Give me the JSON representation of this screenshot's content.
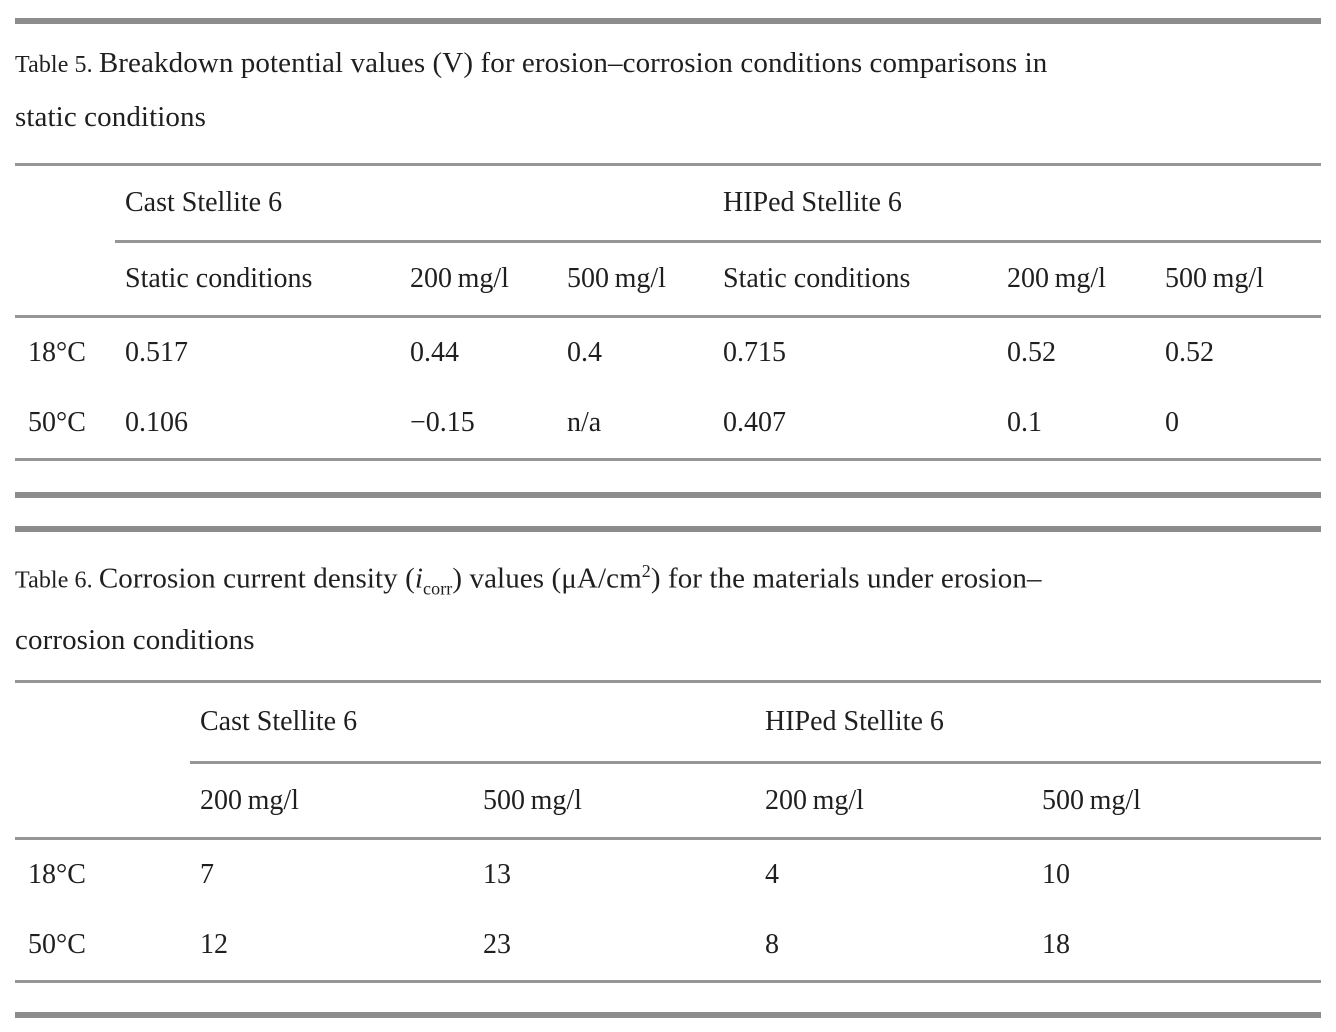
{
  "page": {
    "background": "#ffffff",
    "text_color": "#1f1f1f",
    "rule_color_thin": "#969696",
    "rule_color_thick": "#8c8c8c"
  },
  "table5": {
    "label": "Table 5.",
    "caption_text": "Breakdown potential values (V) for erosion–corrosion conditions comparisons in static conditions",
    "caption_segments": [
      {
        "t": "Table 5. ",
        "style": "label"
      },
      {
        "t": "Breakdown potential values (V) for erosion–corrosion conditions comparisons in"
      },
      {
        "br": true
      },
      {
        "t": "static conditions"
      }
    ],
    "group_headers": [
      "Cast Stellite 6",
      "HIPed Stellite 6"
    ],
    "column_headers": [
      "Static conditions",
      "200 mg/l",
      "500 mg/l",
      "Static conditions",
      "200 mg/l",
      "500 mg/l"
    ],
    "rows": [
      {
        "label": "18°C",
        "values": [
          "0.517",
          "0.44",
          "0.4",
          "0.715",
          "0.52",
          "0.52"
        ]
      },
      {
        "label": "50°C",
        "values": [
          "0.106",
          "−0.15",
          "n/a",
          "0.407",
          "0.1",
          "0"
        ]
      }
    ]
  },
  "table6": {
    "label": "Table 6.",
    "caption_text": "Corrosion current density (i_corr) values (μA/cm²) for the materials under erosion–corrosion conditions",
    "caption_segments": [
      {
        "t": "Table 6. ",
        "style": "label"
      },
      {
        "t": "Corrosion current density ("
      },
      {
        "t": "i",
        "style": "italic"
      },
      {
        "t": "corr",
        "style": "sub"
      },
      {
        "t": ") values (μA/cm"
      },
      {
        "t": "2",
        "style": "sup"
      },
      {
        "t": ") for the materials under erosion–"
      },
      {
        "br": true
      },
      {
        "t": "corrosion conditions"
      }
    ],
    "group_headers": [
      "Cast Stellite 6",
      "HIPed Stellite 6"
    ],
    "column_headers": [
      "200 mg/l",
      "500 mg/l",
      "200 mg/l",
      "500 mg/l"
    ],
    "rows": [
      {
        "label": "18°C",
        "values": [
          "7",
          "13",
          "4",
          "10"
        ]
      },
      {
        "label": "50°C",
        "values": [
          "12",
          "23",
          "8",
          "18"
        ]
      }
    ]
  }
}
